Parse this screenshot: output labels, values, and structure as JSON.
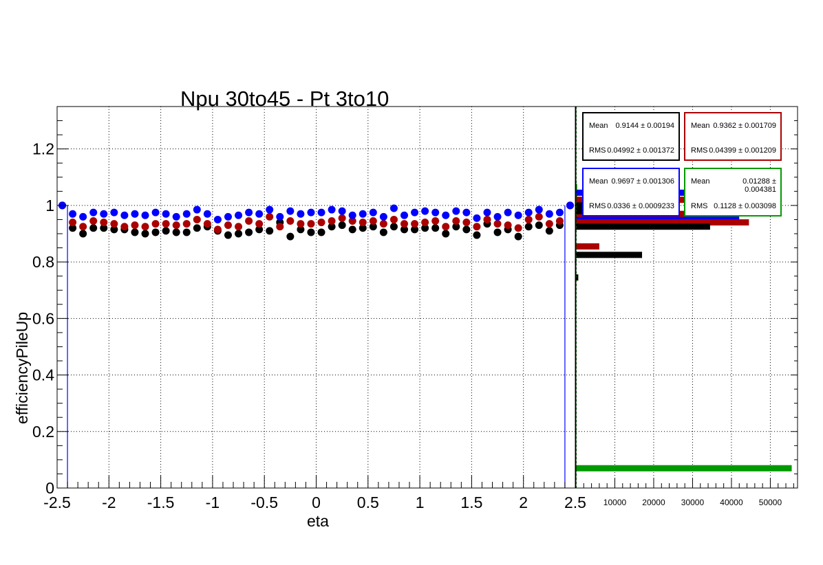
{
  "chart_data": [
    {
      "type": "scatter",
      "title": "Npu 30to45 - Pt 3to10",
      "xlabel": "eta",
      "ylabel": "efficiencyPileUp",
      "xlim": [
        -2.5,
        2.5
      ],
      "ylim": [
        0,
        1.35
      ],
      "grid": true,
      "xticks": [
        "-2.5",
        "-2",
        "-1.5",
        "-1",
        "-0.5",
        "0",
        "0.5",
        "1",
        "1.5",
        "2",
        "2.5"
      ],
      "yticks": [
        "0",
        "0.2",
        "0.4",
        "0.6",
        "0.8",
        "1",
        "1.2"
      ],
      "x": [
        -2.45,
        -2.35,
        -2.25,
        -2.15,
        -2.05,
        -1.95,
        -1.85,
        -1.75,
        -1.65,
        -1.55,
        -1.45,
        -1.35,
        -1.25,
        -1.15,
        -1.05,
        -0.95,
        -0.85,
        -0.75,
        -0.65,
        -0.55,
        -0.45,
        -0.35,
        -0.25,
        -0.15,
        -0.05,
        0.05,
        0.15,
        0.25,
        0.35,
        0.45,
        0.55,
        0.65,
        0.75,
        0.85,
        0.95,
        1.05,
        1.15,
        1.25,
        1.35,
        1.45,
        1.55,
        1.65,
        1.75,
        1.85,
        1.95,
        2.05,
        2.15,
        2.25,
        2.35,
        2.45
      ],
      "series": [
        {
          "color": "#000000",
          "values": [
            1.0,
            0.92,
            0.9,
            0.92,
            0.92,
            0.915,
            0.915,
            0.905,
            0.9,
            0.905,
            0.91,
            0.905,
            0.905,
            0.92,
            0.925,
            0.91,
            0.895,
            0.9,
            0.905,
            0.915,
            0.91,
            0.94,
            0.89,
            0.915,
            0.905,
            0.905,
            0.925,
            0.93,
            0.915,
            0.92,
            0.925,
            0.905,
            0.925,
            0.915,
            0.915,
            0.92,
            0.92,
            0.9,
            0.925,
            0.915,
            0.895,
            0.935,
            0.905,
            0.915,
            0.89,
            0.925,
            0.93,
            0.91,
            0.93,
            1.0
          ]
        },
        {
          "color": "#aa0000",
          "values": [
            1.0,
            0.94,
            0.925,
            0.945,
            0.94,
            0.935,
            0.925,
            0.93,
            0.925,
            0.935,
            0.935,
            0.93,
            0.935,
            0.95,
            0.935,
            0.915,
            0.93,
            0.925,
            0.945,
            0.935,
            0.96,
            0.925,
            0.945,
            0.935,
            0.935,
            0.94,
            0.945,
            0.955,
            0.945,
            0.94,
            0.945,
            0.935,
            0.95,
            0.935,
            0.935,
            0.94,
            0.945,
            0.925,
            0.945,
            0.94,
            0.925,
            0.95,
            0.935,
            0.93,
            0.92,
            0.95,
            0.96,
            0.935,
            0.945,
            1.0
          ]
        },
        {
          "color": "#0000ff",
          "values": [
            1.0,
            0.97,
            0.96,
            0.975,
            0.97,
            0.975,
            0.965,
            0.97,
            0.965,
            0.975,
            0.97,
            0.96,
            0.97,
            0.985,
            0.97,
            0.95,
            0.96,
            0.965,
            0.975,
            0.97,
            0.985,
            0.96,
            0.98,
            0.97,
            0.975,
            0.975,
            0.985,
            0.98,
            0.965,
            0.97,
            0.975,
            0.96,
            0.99,
            0.965,
            0.975,
            0.98,
            0.975,
            0.965,
            0.98,
            0.975,
            0.955,
            0.975,
            0.96,
            0.975,
            0.965,
            0.975,
            0.985,
            0.97,
            0.975,
            1.0
          ]
        }
      ]
    },
    {
      "type": "bar",
      "orientation": "horizontal",
      "xlim": [
        0,
        57000
      ],
      "xticks": [
        "10000",
        "20000",
        "30000",
        "40000",
        "50000"
      ],
      "stats": [
        {
          "color": "#000000",
          "mean_label": "Mean",
          "mean": "0.9144 ± 0.00194",
          "rms_label": "RMS",
          "rms": "0.04992 ± 0.001372"
        },
        {
          "color": "#aa0000",
          "mean_label": "Mean",
          "mean": "0.9362 ± 0.001709",
          "rms_label": "RMS",
          "rms": "0.04399 ± 0.001209"
        },
        {
          "color": "#0000ff",
          "mean_label": "Mean",
          "mean": "0.9697 ± 0.001306",
          "rms_label": "RMS",
          "rms": "0.0336 ± 0.0009233"
        },
        {
          "color": "#009900",
          "mean_label": "Mean",
          "mean": "0.01288 ± 0.004381",
          "rms_label": "RMS",
          "rms": "0.1128 ± 0.003098"
        }
      ],
      "series": [
        {
          "color": "#009900",
          "bars": [
            [
              0.07,
              55500
            ],
            [
              1.065,
              300
            ],
            [
              1.035,
              300
            ]
          ]
        },
        {
          "color": "#0000ff",
          "bars": [
            [
              1.045,
              42000
            ],
            [
              0.955,
              42000
            ],
            [
              1.005,
              1500
            ]
          ]
        },
        {
          "color": "#aa0000",
          "bars": [
            [
              1.02,
              35000
            ],
            [
              0.94,
              44500
            ],
            [
              0.855,
              6000
            ],
            [
              0.97,
              28000
            ]
          ]
        },
        {
          "color": "#000000",
          "bars": [
            [
              0.925,
              34500
            ],
            [
              0.825,
              17000
            ],
            [
              0.745,
              600
            ],
            [
              0.98,
              20000
            ],
            [
              1.0,
              25000
            ]
          ]
        }
      ]
    }
  ]
}
